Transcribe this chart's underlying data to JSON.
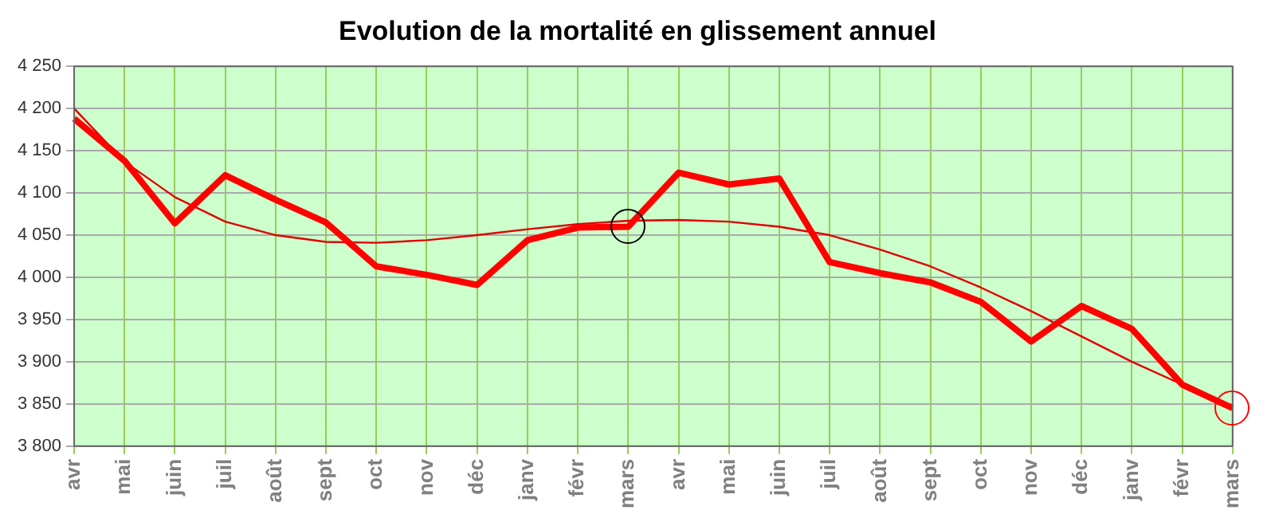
{
  "chart_data": {
    "type": "line",
    "title": "Evolution de la mortalité en glissement annuel",
    "categories": [
      "avr",
      "mai",
      "juin",
      "juil",
      "août",
      "sept",
      "oct",
      "nov",
      "déc",
      "janv",
      "févr",
      "mars",
      "avr",
      "mai",
      "juin",
      "juil",
      "août",
      "sept",
      "oct",
      "nov",
      "déc",
      "janv",
      "févr",
      "mars"
    ],
    "series": [
      {
        "color": "#ff0000",
        "values": [
          4188,
          4138,
          4064,
          4121,
          4092,
          4065,
          4013,
          4003,
          3991,
          4044,
          4059,
          4060,
          4124,
          4110,
          4117,
          4018,
          4005,
          3994,
          3971,
          3924,
          3966,
          3939,
          3873,
          3845
        ]
      },
      {
        "type": "line",
        "color": "#e00000",
        "values": [
          4200,
          4137,
          4095,
          4066,
          4050,
          4042,
          4041,
          4044,
          4050,
          4057,
          4063,
          4067,
          4068,
          4066,
          4060,
          4050,
          4033,
          4013,
          3988,
          3960,
          3930,
          3900,
          3873,
          3848
        ]
      }
    ],
    "ylim": [
      3800,
      4250
    ],
    "yticks": [
      {
        "value": 3800,
        "label": "3 800"
      },
      {
        "value": 3850,
        "label": "3 850"
      },
      {
        "value": 3900,
        "label": "3 900"
      },
      {
        "value": 3950,
        "label": "3 950"
      },
      {
        "value": 4000,
        "label": "4 000"
      },
      {
        "value": 4050,
        "label": "4 050"
      },
      {
        "value": 4100,
        "label": "4 100"
      },
      {
        "value": 4150,
        "label": "4 150"
      },
      {
        "value": 4200,
        "label": "4 200"
      },
      {
        "value": 4250,
        "label": "4 250"
      }
    ],
    "grid": true,
    "legend": false,
    "marker": "none"
  }
}
